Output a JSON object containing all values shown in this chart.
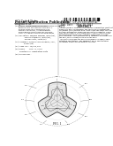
{
  "bg_color": "#ffffff",
  "text_dark": "#111111",
  "text_med": "#333333",
  "text_light": "#666666",
  "line_color": "#444444",
  "diagram_color": "#555555",
  "gray_fill": "#cccccc",
  "fig_width": 1.28,
  "fig_height": 1.65,
  "dpi": 100
}
